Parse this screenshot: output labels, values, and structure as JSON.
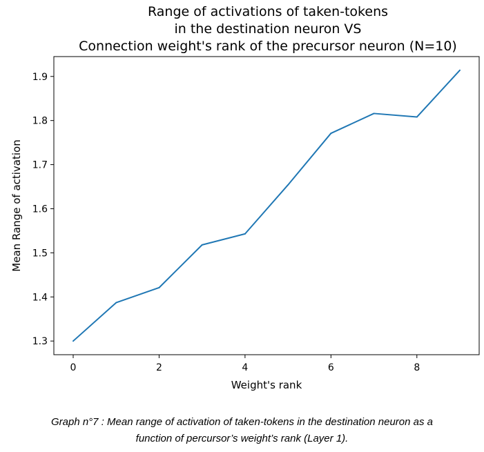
{
  "chart_data": {
    "type": "line",
    "title_lines": [
      "Range of activations of taken-tokens",
      "in the destination neuron VS",
      "Connection weight's rank of the precursor neuron (N=10)"
    ],
    "xlabel": "Weight's rank",
    "ylabel": "Mean Range of activation",
    "x": [
      0,
      1,
      2,
      3,
      4,
      5,
      6,
      7,
      8,
      9
    ],
    "y": [
      1.3,
      1.387,
      1.421,
      1.518,
      1.543,
      1.654,
      1.771,
      1.816,
      1.808,
      1.914
    ],
    "xticks": [
      0,
      2,
      4,
      6,
      8
    ],
    "yticks": [
      1.3,
      1.4,
      1.5,
      1.6,
      1.7,
      1.8,
      1.9
    ],
    "xtick_labels": [
      "0",
      "2",
      "4",
      "6",
      "8"
    ],
    "ytick_labels": [
      "1.3",
      "1.4",
      "1.5",
      "1.6",
      "1.7",
      "1.8",
      "1.9"
    ],
    "xlim": [
      -0.45,
      9.45
    ],
    "ylim": [
      1.269,
      1.945
    ],
    "grid": false,
    "line_color": "#1f77b4"
  },
  "caption": {
    "line1": "Graph n°7 : Mean range of activation of taken-tokens in the destination neuron as a",
    "line2": "function of percursor’s weight’s rank (Layer 1)."
  }
}
